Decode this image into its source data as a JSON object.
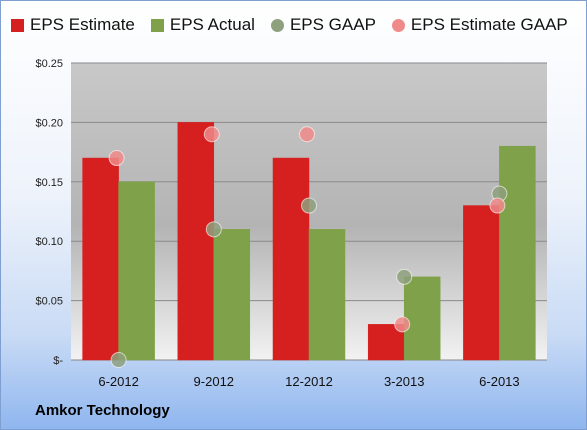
{
  "chart_data": {
    "type": "bar",
    "categories": [
      "6-2012",
      "9-2012",
      "12-2012",
      "3-2013",
      "6-2013"
    ],
    "series": [
      {
        "name": "EPS Estimate",
        "kind": "bar",
        "color": "#d62020",
        "values": [
          0.17,
          0.2,
          0.17,
          0.03,
          0.13
        ]
      },
      {
        "name": "EPS Actual",
        "kind": "bar",
        "color": "#7fa14a",
        "values": [
          0.15,
          0.11,
          0.11,
          0.07,
          0.18
        ]
      },
      {
        "name": "EPS GAAP",
        "kind": "marker",
        "color": "#8ea07e",
        "values": [
          0.0,
          0.11,
          0.13,
          0.07,
          0.14
        ]
      },
      {
        "name": "EPS Estimate GAAP",
        "kind": "marker",
        "color": "#f08a8a",
        "values": [
          0.17,
          0.19,
          0.19,
          0.03,
          0.13
        ]
      }
    ],
    "ytick_labels": [
      "$-",
      "$0.05",
      "$0.10",
      "$0.15",
      "$0.20",
      "$0.25"
    ],
    "ylim": [
      0,
      0.25
    ],
    "grid": true,
    "legend_position": "top"
  },
  "footer": {
    "company": "Amkor Technology"
  }
}
